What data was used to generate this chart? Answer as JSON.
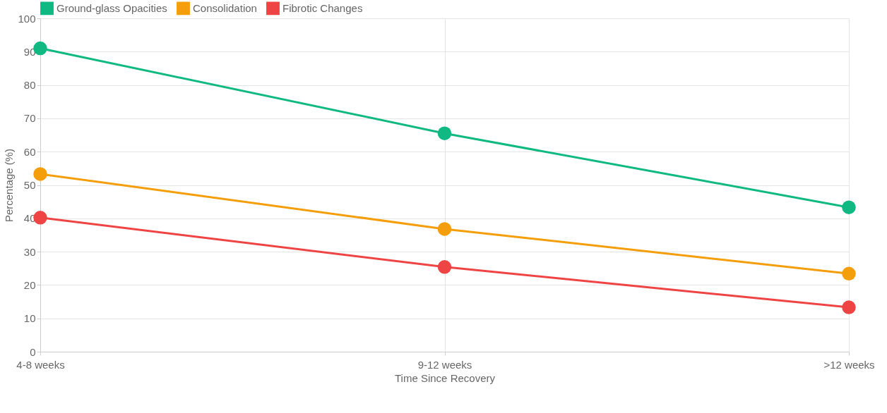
{
  "chart_data": {
    "type": "line",
    "xlabel": "Time Since Recovery",
    "ylabel": "Percentage (%)",
    "categories": [
      "4-8 weeks",
      "9-12 weeks",
      ">12 weeks"
    ],
    "series": [
      {
        "name": "Ground-glass Opacities",
        "color": "#10b981",
        "values": [
          91,
          65.5,
          43.3
        ]
      },
      {
        "name": "Consolidation",
        "color": "#f59e0b",
        "values": [
          53.3,
          36.8,
          23.4
        ]
      },
      {
        "name": "Fibrotic Changes",
        "color": "#ef4444",
        "values": [
          40.2,
          25.4,
          13.3
        ]
      }
    ],
    "ylim": [
      0,
      100
    ],
    "yticks": [
      0,
      10,
      20,
      30,
      40,
      50,
      60,
      70,
      80,
      90,
      100
    ],
    "grid": true,
    "legend": "top",
    "marker": "circle",
    "line_style": "solid"
  }
}
